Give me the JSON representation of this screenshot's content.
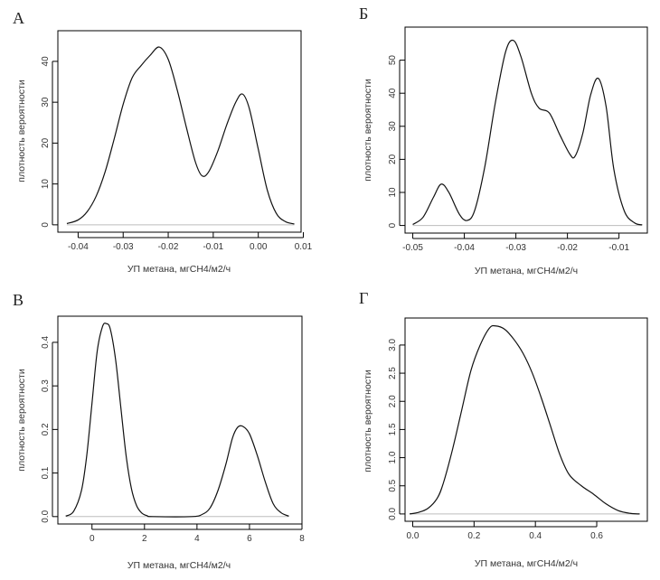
{
  "chart_data": [
    {
      "type": "line",
      "panel_label": "А",
      "xlabel": "УП метана, мгСН4/м2/ч",
      "ylabel": "плотность вероятности",
      "xlim": [
        -0.0445,
        0.0095
      ],
      "ylim": [
        -1.8,
        47.5
      ],
      "xticks": [
        -0.04,
        -0.03,
        -0.02,
        -0.01,
        0.0
      ],
      "xtick_labels": [
        "-0.04",
        "-0.03",
        "-0.02",
        "-0.01",
        "0.00",
        "0.01"
      ],
      "xticks_all": [
        -0.04,
        -0.03,
        -0.02,
        -0.01,
        0.0,
        0.01
      ],
      "yticks": [
        0,
        10,
        20,
        30,
        40
      ],
      "ytick_labels": [
        "0",
        "10",
        "20",
        "30",
        "40"
      ],
      "baseline": 0,
      "x": [
        -0.0425,
        -0.04,
        -0.038,
        -0.036,
        -0.034,
        -0.032,
        -0.03,
        -0.028,
        -0.026,
        -0.024,
        -0.022,
        -0.02,
        -0.018,
        -0.016,
        -0.014,
        -0.0125,
        -0.011,
        -0.009,
        -0.007,
        -0.005,
        -0.0035,
        -0.002,
        0.0,
        0.002,
        0.004,
        0.006,
        0.008
      ],
      "y": [
        0.3,
        1.2,
        3.2,
        7.0,
        13.0,
        21.0,
        29.5,
        36.0,
        39.0,
        41.5,
        43.5,
        40.5,
        33.0,
        24.0,
        15.5,
        12.0,
        13.0,
        18.0,
        24.5,
        30.0,
        32.0,
        28.5,
        18.5,
        8.5,
        2.8,
        0.8,
        0.2
      ]
    },
    {
      "type": "line",
      "panel_label": "Б",
      "xlabel": "УП метана, мгСН4/м2/ч",
      "ylabel": "плотность вероятности",
      "xlim": [
        -0.0515,
        -0.0045
      ],
      "ylim": [
        -2.3,
        60.0
      ],
      "xticks_all": [
        -0.05,
        -0.04,
        -0.03,
        -0.02,
        -0.01
      ],
      "xtick_labels": [
        "-0.05",
        "-0.04",
        "-0.03",
        "-0.02",
        "-0.01"
      ],
      "yticks": [
        0,
        10,
        20,
        30,
        40,
        50
      ],
      "ytick_labels": [
        "0",
        "10",
        "20",
        "30",
        "40",
        "50"
      ],
      "baseline": 0,
      "x": [
        -0.05,
        -0.048,
        -0.046,
        -0.0445,
        -0.043,
        -0.041,
        -0.0395,
        -0.038,
        -0.036,
        -0.034,
        -0.032,
        -0.0305,
        -0.029,
        -0.027,
        -0.0255,
        -0.0235,
        -0.0215,
        -0.0195,
        -0.0185,
        -0.017,
        -0.0155,
        -0.014,
        -0.0125,
        -0.011,
        -0.009,
        -0.007,
        -0.0055
      ],
      "y": [
        0.3,
        2.5,
        8.5,
        12.5,
        10.0,
        3.5,
        1.5,
        4.5,
        18.0,
        37.0,
        52.5,
        56.0,
        51.0,
        40.0,
        35.5,
        34.0,
        27.5,
        21.5,
        21.0,
        28.0,
        39.5,
        44.5,
        36.0,
        17.0,
        4.5,
        0.8,
        0.2
      ]
    },
    {
      "type": "line",
      "panel_label": "В",
      "xlabel": "УП метана, мгСН4/м2/ч",
      "ylabel": "плотность вероятности",
      "xlim": [
        -1.3,
        8.0
      ],
      "ylim": [
        -0.017,
        0.46
      ],
      "xticks_all": [
        0,
        2,
        4,
        6,
        8
      ],
      "xtick_labels": [
        "0",
        "2",
        "4",
        "6",
        "8"
      ],
      "yticks": [
        0.0,
        0.1,
        0.2,
        0.3,
        0.4
      ],
      "ytick_labels": [
        "0.0",
        "0.1",
        "0.2",
        "0.3",
        "0.4"
      ],
      "baseline": 0,
      "x": [
        -1.0,
        -0.7,
        -0.4,
        -0.2,
        0.0,
        0.2,
        0.4,
        0.55,
        0.7,
        0.9,
        1.1,
        1.3,
        1.5,
        1.7,
        1.9,
        2.1,
        2.3,
        3.8,
        4.2,
        4.5,
        4.8,
        5.1,
        5.35,
        5.55,
        5.75,
        6.0,
        6.3,
        6.6,
        6.9,
        7.2,
        7.5
      ],
      "y": [
        0.001,
        0.012,
        0.06,
        0.14,
        0.26,
        0.38,
        0.436,
        0.443,
        0.43,
        0.36,
        0.25,
        0.14,
        0.065,
        0.025,
        0.008,
        0.002,
        0.0,
        0.0,
        0.005,
        0.02,
        0.06,
        0.12,
        0.18,
        0.205,
        0.207,
        0.19,
        0.14,
        0.08,
        0.03,
        0.009,
        0.001
      ]
    },
    {
      "type": "line",
      "panel_label": "Г",
      "xlabel": "УП метана, мгСН4/м2/ч",
      "ylabel": "плотность вероятности",
      "xlim": [
        -0.025,
        0.765
      ],
      "ylim": [
        -0.13,
        3.48
      ],
      "xticks_all": [
        0.0,
        0.2,
        0.4,
        0.6
      ],
      "xtick_labels": [
        "0.0",
        "0.2",
        "0.4",
        "0.6"
      ],
      "yticks": [
        0.0,
        0.5,
        1.0,
        1.5,
        2.0,
        2.5,
        3.0
      ],
      "ytick_labels": [
        "0.0",
        "0.5",
        "1.0",
        "1.5",
        "2.0",
        "2.5",
        "3.0"
      ],
      "baseline": 0,
      "x": [
        -0.01,
        0.02,
        0.05,
        0.08,
        0.1,
        0.13,
        0.16,
        0.19,
        0.22,
        0.25,
        0.27,
        0.3,
        0.33,
        0.36,
        0.39,
        0.42,
        0.45,
        0.48,
        0.51,
        0.55,
        0.59,
        0.63,
        0.67,
        0.71,
        0.74
      ],
      "y": [
        0.0,
        0.03,
        0.1,
        0.28,
        0.55,
        1.15,
        1.85,
        2.55,
        3.0,
        3.3,
        3.34,
        3.28,
        3.1,
        2.85,
        2.5,
        2.05,
        1.55,
        1.05,
        0.7,
        0.5,
        0.35,
        0.18,
        0.06,
        0.01,
        0.0
      ]
    }
  ]
}
